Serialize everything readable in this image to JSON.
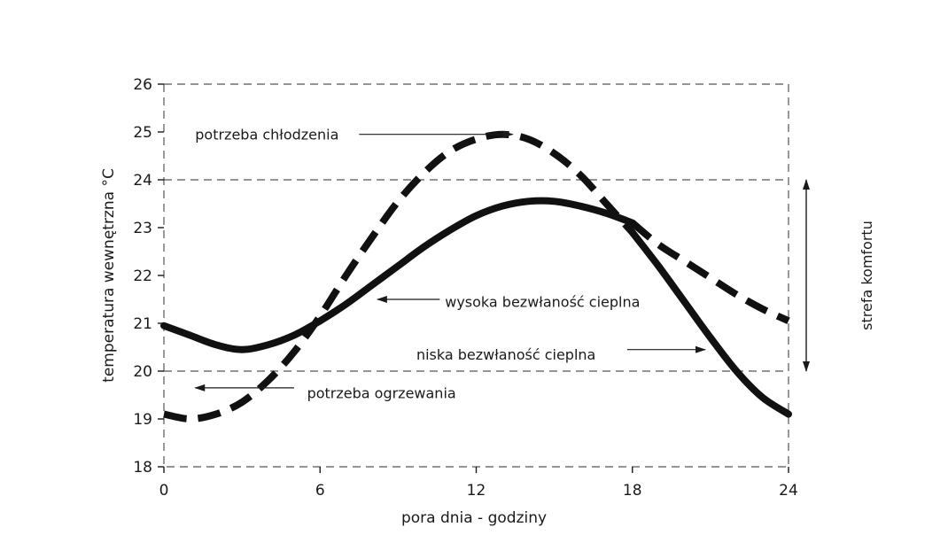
{
  "chart_data": {
    "type": "line",
    "xlabel": "pora dnia - godziny",
    "ylabel": "temperatura wewnętrzna °C",
    "xlim": [
      0,
      24
    ],
    "ylim": [
      18,
      26
    ],
    "xticks": [
      0,
      6,
      12,
      18,
      24
    ],
    "yticks": [
      18,
      19,
      20,
      21,
      22,
      23,
      24,
      25,
      26
    ],
    "grid": "dashed horizontal at 20 and 24, dashed frame",
    "comfort_zone": [
      20,
      24
    ],
    "series": [
      {
        "style": "solid",
        "x": [
          0,
          1,
          2,
          3,
          4,
          5,
          6,
          7,
          8,
          9,
          10,
          11,
          12,
          13,
          14,
          15,
          16,
          17,
          18
        ],
        "y": [
          20.95,
          20.75,
          20.55,
          20.45,
          20.55,
          20.75,
          21.05,
          21.4,
          21.8,
          22.2,
          22.6,
          22.95,
          23.25,
          23.45,
          23.55,
          23.55,
          23.45,
          23.3,
          23.1
        ]
      },
      {
        "style": "dashed",
        "x": [
          18,
          19,
          20,
          21,
          22,
          23,
          24
        ],
        "y": [
          23.1,
          22.65,
          22.3,
          21.95,
          21.6,
          21.3,
          21.05
        ]
      },
      {
        "style": "dashed",
        "x": [
          0,
          1,
          2,
          3,
          4,
          5,
          6,
          7,
          8,
          9,
          10,
          11,
          12,
          13,
          14,
          15,
          16,
          17,
          18
        ],
        "y": [
          19.1,
          19.0,
          19.1,
          19.35,
          19.8,
          20.4,
          21.15,
          22.0,
          22.8,
          23.55,
          24.15,
          24.6,
          24.85,
          24.95,
          24.85,
          24.55,
          24.1,
          23.5,
          22.9
        ]
      },
      {
        "style": "solid",
        "x": [
          18,
          19,
          20,
          21,
          22,
          23,
          24
        ],
        "y": [
          22.9,
          22.2,
          21.45,
          20.7,
          20.0,
          19.45,
          19.1
        ]
      }
    ],
    "annotations": [
      {
        "id": "cooling",
        "text": "potrzeba chłodzenia",
        "x": 1.2,
        "y": 24.95,
        "arrow_from": [
          7.5,
          24.95
        ],
        "arrow_to": [
          13.4,
          24.95
        ]
      },
      {
        "id": "heating",
        "text": "potrzeba ogrzewania",
        "x": 5.5,
        "y": 19.55,
        "arrow_from": [
          5.0,
          19.65
        ],
        "arrow_to": [
          1.2,
          19.65
        ]
      },
      {
        "id": "high_inertia",
        "text": "wysoka bezwłaność cieplna",
        "x": 10.8,
        "y": 21.45,
        "arrow_from": [
          10.6,
          21.5
        ],
        "arrow_to": [
          8.2,
          21.5
        ]
      },
      {
        "id": "low_inertia",
        "text": "niska bezwłaność cieplna",
        "x": 9.7,
        "y": 20.35,
        "arrow_from": [
          17.8,
          20.45
        ],
        "arrow_to": [
          20.8,
          20.45
        ]
      },
      {
        "id": "comfort",
        "text": "strefa komfortu",
        "x": 25.5,
        "y": 22.0
      }
    ]
  }
}
